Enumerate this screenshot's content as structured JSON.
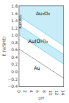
{
  "chart_data": {
    "type": "line",
    "title": "",
    "xlabel": "pH",
    "ylabel": "E (V/SHE)",
    "xlim": [
      0,
      14
    ],
    "ylim": [
      -0.4,
      1.8
    ],
    "xticks": [
      0,
      2,
      4,
      6,
      8,
      10,
      12,
      14
    ],
    "yticks": [
      1.8,
      1.6,
      1.4,
      1.2,
      {
        "value": 1.0,
        "label": "1.0"
      },
      0.8,
      0.6,
      0.4,
      0.2,
      {
        "value": 0,
        "label": "0.0"
      },
      {
        "value": -0.2,
        "label": "−0.2"
      },
      {
        "value": -0.4,
        "label": "−0.4"
      }
    ],
    "grid": false,
    "series": [
      {
        "type": "area",
        "color": "#c8ecf8",
        "x": [
          0,
          14
        ],
        "values": [
          1.8,
          1.8
        ],
        "lower": [
          1.52,
          0.72
        ]
      },
      {
        "type": "area",
        "color": "#c8ecf8",
        "x": [
          0,
          14
        ],
        "values": [
          1.27,
          0.48
        ],
        "lower": [
          1.01,
          0.22
        ]
      },
      {
        "type": "line",
        "color": "#999999",
        "x": [
          0,
          14
        ],
        "values": [
          0.62,
          -0.17
        ]
      },
      {
        "type": "line",
        "color": "#7dd8f0",
        "x": [
          0,
          14
        ],
        "values": [
          1.52,
          0.72
        ]
      },
      {
        "type": "line",
        "color": "#7dd8f0",
        "x": [
          0,
          14
        ],
        "values": [
          1.27,
          0.48
        ]
      },
      {
        "type": "line",
        "color": "#7dd8f0",
        "x": [
          0,
          14
        ],
        "values": [
          1.01,
          0.22
        ]
      },
      {
        "type": "line",
        "color": "#7dd8f0",
        "x": [
          0.55,
          0.55
        ],
        "values": [
          1.2389642857142857,
          1.4885714285714287
        ]
      }
    ],
    "annotations": [
      {
        "text": "Au₂O₃",
        "x": 7.5,
        "y": 1.6
      },
      {
        "text": "Au(OH)₃",
        "x": 6.0,
        "y": 0.83
      },
      {
        "text": "Au",
        "x": 5.5,
        "y": 0.1
      },
      {
        "text": "Au(OH)₃",
        "x": 0.3,
        "y": 1.38
      }
    ]
  }
}
